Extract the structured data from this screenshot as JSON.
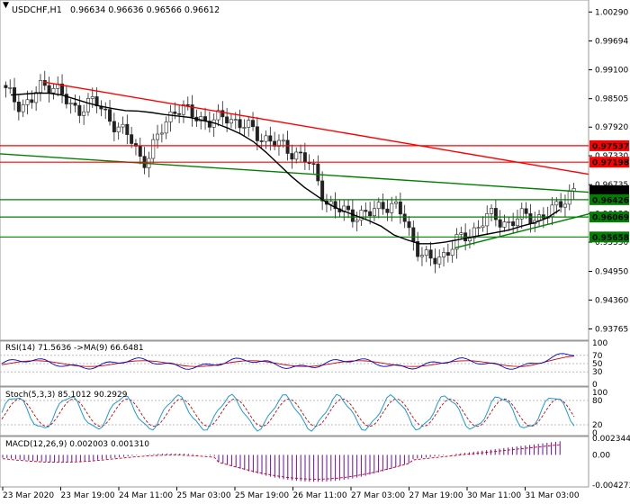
{
  "header": {
    "symbol": "USDCHF,H1",
    "ohlc": "0.96634 0.96636 0.96566 0.96612"
  },
  "rsi": {
    "label": "RSI(14) 71.5636  ->MA(9) 66.6481",
    "ticks": [
      "100",
      "70",
      "50",
      "30",
      "0"
    ]
  },
  "stoch": {
    "label": "Stoch(5,3,3) 85.1012 90.2929",
    "ticks": [
      "100",
      "80",
      "20",
      "0"
    ]
  },
  "macd": {
    "label": "MACD(12,26,9) 0.002003 0.001310",
    "ticks": [
      "0.002344",
      "0.00",
      "-0.004273"
    ]
  },
  "colors": {
    "bull": "#2e8b57",
    "bear": "#c0392b",
    "resistance": "#ff0000",
    "support": "#008000",
    "ma": "#000000",
    "rsi": "#0000cc",
    "rsi_ma": "#cc0000",
    "stoch_main": "#1a9ad6",
    "stoch_signal": "#cc0000",
    "macd_hist": "#6a0dad",
    "macd_signal": "#cc0000"
  },
  "chart_data": {
    "type": "candlestick",
    "y_ticks": [
      "1.00290",
      "0.99694",
      "0.99100",
      "0.98505",
      "0.97920",
      "0.97330",
      "0.96735",
      "0.96138",
      "0.95550",
      "0.94950",
      "0.94360",
      "0.93765"
    ],
    "y_range": [
      0.9357,
      1.005
    ],
    "x_ticks": [
      "23 Mar 2020",
      "23 Mar 19:00",
      "24 Mar 11:00",
      "25 Mar 03:00",
      "25 Mar 19:00",
      "26 Mar 11:00",
      "27 Mar 03:00",
      "27 Mar 19:00",
      "30 Mar 11:00",
      "31 Mar 03:00"
    ],
    "price_tags": [
      {
        "value": "0.97537",
        "v": 0.97537,
        "kind": "resistance"
      },
      {
        "value": "0.97198",
        "v": 0.97198,
        "kind": "resistance"
      },
      {
        "value": "0.96612",
        "v": 0.96612,
        "kind": "current"
      },
      {
        "value": "0.96426",
        "v": 0.96426,
        "kind": "support"
      },
      {
        "value": "0.96069",
        "v": 0.96069,
        "kind": "support"
      },
      {
        "value": "0.95658",
        "v": 0.95658,
        "kind": "support"
      }
    ],
    "close_path": [
      0.9865,
      0.9852,
      0.9842,
      0.9838,
      0.9846,
      0.9872,
      0.9875,
      0.9885,
      0.987,
      0.9848,
      0.9832,
      0.9826,
      0.984,
      0.9845,
      0.9838,
      0.9822,
      0.981,
      0.9795,
      0.978,
      0.977,
      0.9745,
      0.9722,
      0.9735,
      0.976,
      0.979,
      0.9815,
      0.9832,
      0.9828,
      0.982,
      0.9815,
      0.981,
      0.9805,
      0.9802,
      0.981,
      0.9815,
      0.9806,
      0.9798,
      0.979,
      0.9782,
      0.9774,
      0.9768,
      0.976,
      0.9752,
      0.9748,
      0.9742,
      0.9735,
      0.9722,
      0.9705,
      0.9678,
      0.964,
      0.9625,
      0.962,
      0.9618,
      0.9615,
      0.9612,
      0.9608,
      0.9615,
      0.9628,
      0.9636,
      0.963,
      0.962,
      0.9605,
      0.957,
      0.9545,
      0.9525,
      0.9515,
      0.952,
      0.953,
      0.9545,
      0.9555,
      0.9562,
      0.957,
      0.9585,
      0.96,
      0.9607,
      0.9604,
      0.9598,
      0.9595,
      0.96,
      0.9605,
      0.961,
      0.9607,
      0.9605,
      0.9612,
      0.962,
      0.964,
      0.9652,
      0.9661
    ],
    "ma_path": [
      0.9858,
      0.986,
      0.9862,
      0.9862,
      0.9858,
      0.985,
      0.9842,
      0.9835,
      0.983,
      0.9826,
      0.9825,
      0.9822,
      0.9818,
      0.9815,
      0.9812,
      0.9806,
      0.98,
      0.979,
      0.9778,
      0.9762,
      0.974,
      0.9715,
      0.969,
      0.9668,
      0.965,
      0.9632,
      0.962,
      0.961,
      0.96,
      0.9588,
      0.957,
      0.956,
      0.9552,
      0.9552,
      0.9555,
      0.956,
      0.9565,
      0.957,
      0.9575,
      0.958,
      0.9588,
      0.9595,
      0.9605,
      0.9622
    ]
  }
}
